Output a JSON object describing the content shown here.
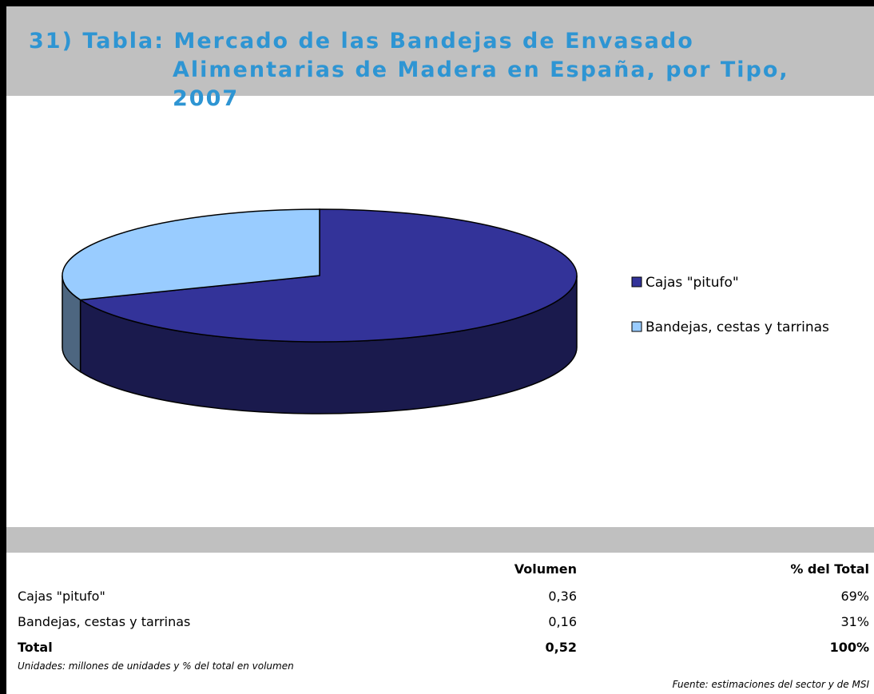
{
  "header": {
    "title": "31) Tabla: Mercado de las Bandejas de Envasado Alimentarias de Madera en España, por Tipo, 2007"
  },
  "chart_data": {
    "type": "pie",
    "categories": [
      "Cajas \"pitufo\"",
      "Bandejas, cestas y tarrinas"
    ],
    "values": [
      69,
      31
    ],
    "colors": [
      "#333399",
      "#99ccff"
    ],
    "legend": "right"
  },
  "table": {
    "columns": [
      "Volumen",
      "% del Total"
    ],
    "rows": [
      [
        "Cajas \"pitufo\"",
        "0,36",
        "69%"
      ],
      [
        "Bandejas, cestas y tarrinas",
        "0,16",
        "31%"
      ]
    ],
    "total": [
      "Total",
      "0,52",
      "100%"
    ]
  },
  "notes": {
    "units": "Unidades: millones de unidades y % del total en volumen",
    "source": "Fuente: estimaciones del sector y de MSI"
  }
}
